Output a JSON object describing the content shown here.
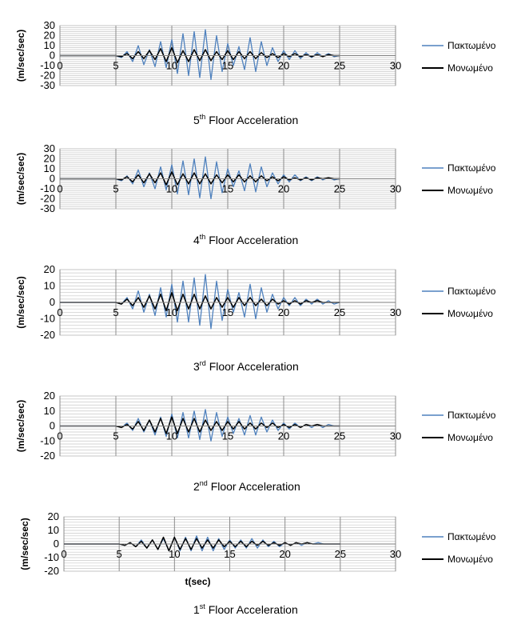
{
  "figure": {
    "series_colors": {
      "fixed": "#4F81BD",
      "isolated": "#000000"
    }
  },
  "chart_data": [
    {
      "type": "line",
      "caption": {
        "pre": "5",
        "sup": "th",
        "post": " Floor Acceleration"
      },
      "ylabel": "(m/sec/sec)",
      "xlabel": "",
      "xlim": [
        0,
        30
      ],
      "ylim": [
        -30,
        30
      ],
      "x_ticks": [
        0,
        5,
        10,
        15,
        20,
        25,
        30
      ],
      "y_ticks": [
        30,
        20,
        10,
        0,
        -10,
        -20,
        -30
      ],
      "grid": true,
      "legend_position": "right",
      "series": [
        {
          "name": "Πακτωμένο",
          "color": "#4F81BD",
          "x": [
            0,
            5,
            5.5,
            6,
            6.5,
            7,
            7.5,
            8,
            8.5,
            9,
            9.5,
            10,
            10.5,
            11,
            11.5,
            12,
            12.5,
            13,
            13.5,
            14,
            14.5,
            15,
            15.5,
            16,
            16.5,
            17,
            17.5,
            18,
            18.5,
            19,
            19.5,
            20,
            20.5,
            21,
            21.5,
            22,
            22.5,
            23,
            23.5,
            24,
            24.5,
            25
          ],
          "y": [
            0,
            0,
            -2,
            4,
            -6,
            10,
            -9,
            6,
            -11,
            14,
            -12,
            16,
            -18,
            22,
            -20,
            24,
            -22,
            26,
            -24,
            20,
            -16,
            12,
            -10,
            9,
            -14,
            18,
            -16,
            14,
            -10,
            8,
            -6,
            5,
            -4,
            5,
            -3,
            3,
            -2,
            3,
            -1,
            2,
            -1,
            0
          ]
        },
        {
          "name": "Μονωμένο",
          "color": "#000000",
          "x": [
            0,
            5,
            5.5,
            6,
            6.5,
            7,
            7.5,
            8,
            8.5,
            9,
            9.5,
            10,
            10.5,
            11,
            11.5,
            12,
            12.5,
            13,
            13.5,
            14,
            14.5,
            15,
            15.5,
            16,
            16.5,
            17,
            17.5,
            18,
            18.5,
            19,
            19.5,
            20,
            20.5,
            21,
            21.5,
            22,
            22.5,
            23,
            23.5,
            24,
            24.5,
            25
          ],
          "y": [
            0,
            0,
            -1,
            2,
            -3,
            4,
            -3,
            5,
            -4,
            7,
            -6,
            8,
            -7,
            5,
            -6,
            6,
            -5,
            6,
            -5,
            4,
            -4,
            5,
            -4,
            4,
            -3,
            4,
            -3,
            3,
            -2,
            2,
            -2,
            2,
            -1,
            2,
            -1,
            1,
            -1,
            1,
            -1,
            1,
            0,
            0
          ]
        }
      ]
    },
    {
      "type": "line",
      "caption": {
        "pre": "4",
        "sup": "th",
        "post": " Floor Acceleration"
      },
      "ylabel": "(m/sec/sec)",
      "xlabel": "",
      "xlim": [
        0,
        30
      ],
      "ylim": [
        -30,
        30
      ],
      "x_ticks": [
        0,
        5,
        10,
        15,
        20,
        25,
        30
      ],
      "y_ticks": [
        30,
        20,
        10,
        0,
        -10,
        -20,
        -30
      ],
      "grid": true,
      "legend_position": "right",
      "series": [
        {
          "name": "Πακτωμένο",
          "color": "#4F81BD",
          "x": [
            0,
            5,
            5.5,
            6,
            6.5,
            7,
            7.5,
            8,
            8.5,
            9,
            9.5,
            10,
            10.5,
            11,
            11.5,
            12,
            12.5,
            13,
            13.5,
            14,
            14.5,
            15,
            15.5,
            16,
            16.5,
            17,
            17.5,
            18,
            18.5,
            19,
            19.5,
            20,
            20.5,
            21,
            21.5,
            22,
            22.5,
            23,
            23.5,
            24,
            24.5,
            25
          ],
          "y": [
            0,
            0,
            -2,
            3,
            -5,
            9,
            -8,
            6,
            -10,
            12,
            -11,
            14,
            -15,
            18,
            -16,
            20,
            -19,
            22,
            -20,
            17,
            -14,
            10,
            -8,
            8,
            -12,
            15,
            -13,
            12,
            -8,
            6,
            -5,
            4,
            -3,
            4,
            -2,
            2,
            -2,
            2,
            -1,
            1,
            -1,
            0
          ]
        },
        {
          "name": "Μονωμένο",
          "color": "#000000",
          "x": [
            0,
            5,
            5.5,
            6,
            6.5,
            7,
            7.5,
            8,
            8.5,
            9,
            9.5,
            10,
            10.5,
            11,
            11.5,
            12,
            12.5,
            13,
            13.5,
            14,
            14.5,
            15,
            15.5,
            16,
            16.5,
            17,
            17.5,
            18,
            18.5,
            19,
            19.5,
            20,
            20.5,
            21,
            21.5,
            22,
            22.5,
            23,
            23.5,
            24,
            24.5,
            25
          ],
          "y": [
            0,
            0,
            -1,
            2,
            -3,
            4,
            -4,
            5,
            -4,
            6,
            -6,
            7,
            -6,
            5,
            -5,
            6,
            -5,
            5,
            -5,
            4,
            -4,
            4,
            -3,
            4,
            -3,
            3,
            -3,
            3,
            -2,
            2,
            -2,
            2,
            -1,
            1,
            -1,
            1,
            -1,
            1,
            0,
            1,
            0,
            0
          ]
        }
      ]
    },
    {
      "type": "line",
      "caption": {
        "pre": "3",
        "sup": "rd",
        "post": " Floor Acceleration"
      },
      "ylabel": "(m/sec/sec)",
      "xlabel": "",
      "xlim": [
        0,
        30
      ],
      "ylim": [
        -20,
        20
      ],
      "x_ticks": [
        0,
        5,
        10,
        15,
        20,
        25,
        30
      ],
      "y_ticks": [
        20,
        10,
        0,
        -10,
        -20
      ],
      "grid": true,
      "legend_position": "right",
      "series": [
        {
          "name": "Πακτωμένο",
          "color": "#4F81BD",
          "x": [
            0,
            5,
            5.5,
            6,
            6.5,
            7,
            7.5,
            8,
            8.5,
            9,
            9.5,
            10,
            10.5,
            11,
            11.5,
            12,
            12.5,
            13,
            13.5,
            14,
            14.5,
            15,
            15.5,
            16,
            16.5,
            17,
            17.5,
            18,
            18.5,
            19,
            19.5,
            20,
            20.5,
            21,
            21.5,
            22,
            22.5,
            23,
            23.5,
            24,
            24.5,
            25
          ],
          "y": [
            0,
            0,
            -1,
            3,
            -4,
            7,
            -6,
            5,
            -8,
            9,
            -9,
            11,
            -12,
            13,
            -12,
            15,
            -14,
            17,
            -16,
            13,
            -11,
            8,
            -6,
            6,
            -9,
            11,
            -10,
            9,
            -6,
            5,
            -4,
            3,
            -2,
            3,
            -2,
            2,
            -1,
            2,
            -1,
            1,
            -1,
            0
          ]
        },
        {
          "name": "Μονωμένο",
          "color": "#000000",
          "x": [
            0,
            5,
            5.5,
            6,
            6.5,
            7,
            7.5,
            8,
            8.5,
            9,
            9.5,
            10,
            10.5,
            11,
            11.5,
            12,
            12.5,
            13,
            13.5,
            14,
            14.5,
            15,
            15.5,
            16,
            16.5,
            17,
            17.5,
            18,
            18.5,
            19,
            19.5,
            20,
            20.5,
            21,
            21.5,
            22,
            22.5,
            23,
            23.5,
            24,
            24.5,
            25
          ],
          "y": [
            0,
            0,
            -1,
            2,
            -2,
            3,
            -3,
            4,
            -4,
            5,
            -5,
            6,
            -5,
            5,
            -4,
            5,
            -4,
            4,
            -4,
            3,
            -3,
            3,
            -3,
            3,
            -2,
            3,
            -2,
            2,
            -2,
            2,
            -1,
            1,
            -1,
            1,
            -1,
            1,
            0,
            1,
            0,
            0,
            0,
            0
          ]
        }
      ]
    },
    {
      "type": "line",
      "caption": {
        "pre": "2",
        "sup": "nd",
        "post": " Floor Acceleration"
      },
      "ylabel": "(m/sec/sec)",
      "xlabel": "",
      "xlim": [
        0,
        30
      ],
      "ylim": [
        -20,
        20
      ],
      "x_ticks": [
        0,
        5,
        10,
        15,
        20,
        25,
        30
      ],
      "y_ticks": [
        20,
        10,
        0,
        -10,
        -20
      ],
      "grid": true,
      "legend_position": "right",
      "series": [
        {
          "name": "Πακτωμένο",
          "color": "#4F81BD",
          "x": [
            0,
            5,
            5.5,
            6,
            6.5,
            7,
            7.5,
            8,
            8.5,
            9,
            9.5,
            10,
            10.5,
            11,
            11.5,
            12,
            12.5,
            13,
            13.5,
            14,
            14.5,
            15,
            15.5,
            16,
            16.5,
            17,
            17.5,
            18,
            18.5,
            19,
            19.5,
            20,
            20.5,
            21,
            21.5,
            22,
            22.5,
            23,
            23.5,
            24,
            24.5,
            25
          ],
          "y": [
            0,
            0,
            -1,
            2,
            -3,
            5,
            -4,
            4,
            -6,
            6,
            -7,
            8,
            -8,
            9,
            -8,
            10,
            -9,
            11,
            -10,
            9,
            -7,
            6,
            -5,
            5,
            -6,
            7,
            -6,
            6,
            -4,
            4,
            -3,
            2,
            -2,
            2,
            -1,
            1,
            -1,
            1,
            -1,
            1,
            0,
            0
          ]
        },
        {
          "name": "Μονωμένο",
          "color": "#000000",
          "x": [
            0,
            5,
            5.5,
            6,
            6.5,
            7,
            7.5,
            8,
            8.5,
            9,
            9.5,
            10,
            10.5,
            11,
            11.5,
            12,
            12.5,
            13,
            13.5,
            14,
            14.5,
            15,
            15.5,
            16,
            16.5,
            17,
            17.5,
            18,
            18.5,
            19,
            19.5,
            20,
            20.5,
            21,
            21.5,
            22,
            22.5,
            23,
            23.5,
            24,
            24.5,
            25
          ],
          "y": [
            0,
            0,
            -1,
            1,
            -2,
            3,
            -3,
            4,
            -4,
            5,
            -5,
            6,
            -5,
            5,
            -4,
            5,
            -4,
            4,
            -3,
            3,
            -3,
            3,
            -2,
            3,
            -2,
            2,
            -2,
            2,
            -1,
            2,
            -1,
            1,
            -1,
            1,
            -1,
            1,
            0,
            1,
            0,
            0,
            0,
            0
          ]
        }
      ]
    },
    {
      "type": "line",
      "caption": {
        "pre": "1",
        "sup": "st",
        "post": " Floor Acceleration"
      },
      "ylabel": "(m/sec/sec)",
      "xlabel": "t(sec)",
      "xlim": [
        0,
        30
      ],
      "ylim": [
        -20,
        20
      ],
      "x_ticks": [
        0,
        5,
        10,
        15,
        20,
        25,
        30
      ],
      "y_ticks": [
        20,
        10,
        0,
        -10,
        -20
      ],
      "grid": true,
      "legend_position": "right",
      "series": [
        {
          "name": "Πακτωμένο",
          "color": "#4F81BD",
          "x": [
            0,
            5,
            5.5,
            6,
            6.5,
            7,
            7.5,
            8,
            8.5,
            9,
            9.5,
            10,
            10.5,
            11,
            11.5,
            12,
            12.5,
            13,
            13.5,
            14,
            14.5,
            15,
            15.5,
            16,
            16.5,
            17,
            17.5,
            18,
            18.5,
            19,
            19.5,
            20,
            20.5,
            21,
            21.5,
            22,
            22.5,
            23,
            23.5,
            24,
            24.5,
            25
          ],
          "y": [
            0,
            0,
            -1,
            1,
            -2,
            3,
            -3,
            3,
            -4,
            4,
            -5,
            5,
            -5,
            5,
            -5,
            6,
            -5,
            5,
            -5,
            4,
            -4,
            3,
            -3,
            3,
            -3,
            4,
            -3,
            3,
            -2,
            2,
            -2,
            1,
            -1,
            1,
            -1,
            1,
            0,
            1,
            0,
            0,
            0,
            0
          ]
        },
        {
          "name": "Μονωμένο",
          "color": "#000000",
          "x": [
            0,
            5,
            5.5,
            6,
            6.5,
            7,
            7.5,
            8,
            8.5,
            9,
            9.5,
            10,
            10.5,
            11,
            11.5,
            12,
            12.5,
            13,
            13.5,
            14,
            14.5,
            15,
            15.5,
            16,
            16.5,
            17,
            17.5,
            18,
            18.5,
            19,
            19.5,
            20,
            20.5,
            21,
            21.5,
            22,
            22.5,
            23,
            23.5,
            24,
            24.5,
            25
          ],
          "y": [
            0,
            0,
            -1,
            1,
            -2,
            2,
            -3,
            3,
            -4,
            5,
            -5,
            5,
            -4,
            4,
            -4,
            4,
            -3,
            3,
            -3,
            3,
            -2,
            2,
            -2,
            2,
            -2,
            2,
            -1,
            2,
            -1,
            1,
            -1,
            1,
            -1,
            1,
            0,
            1,
            0,
            0,
            0,
            0,
            0,
            0
          ]
        }
      ]
    }
  ]
}
